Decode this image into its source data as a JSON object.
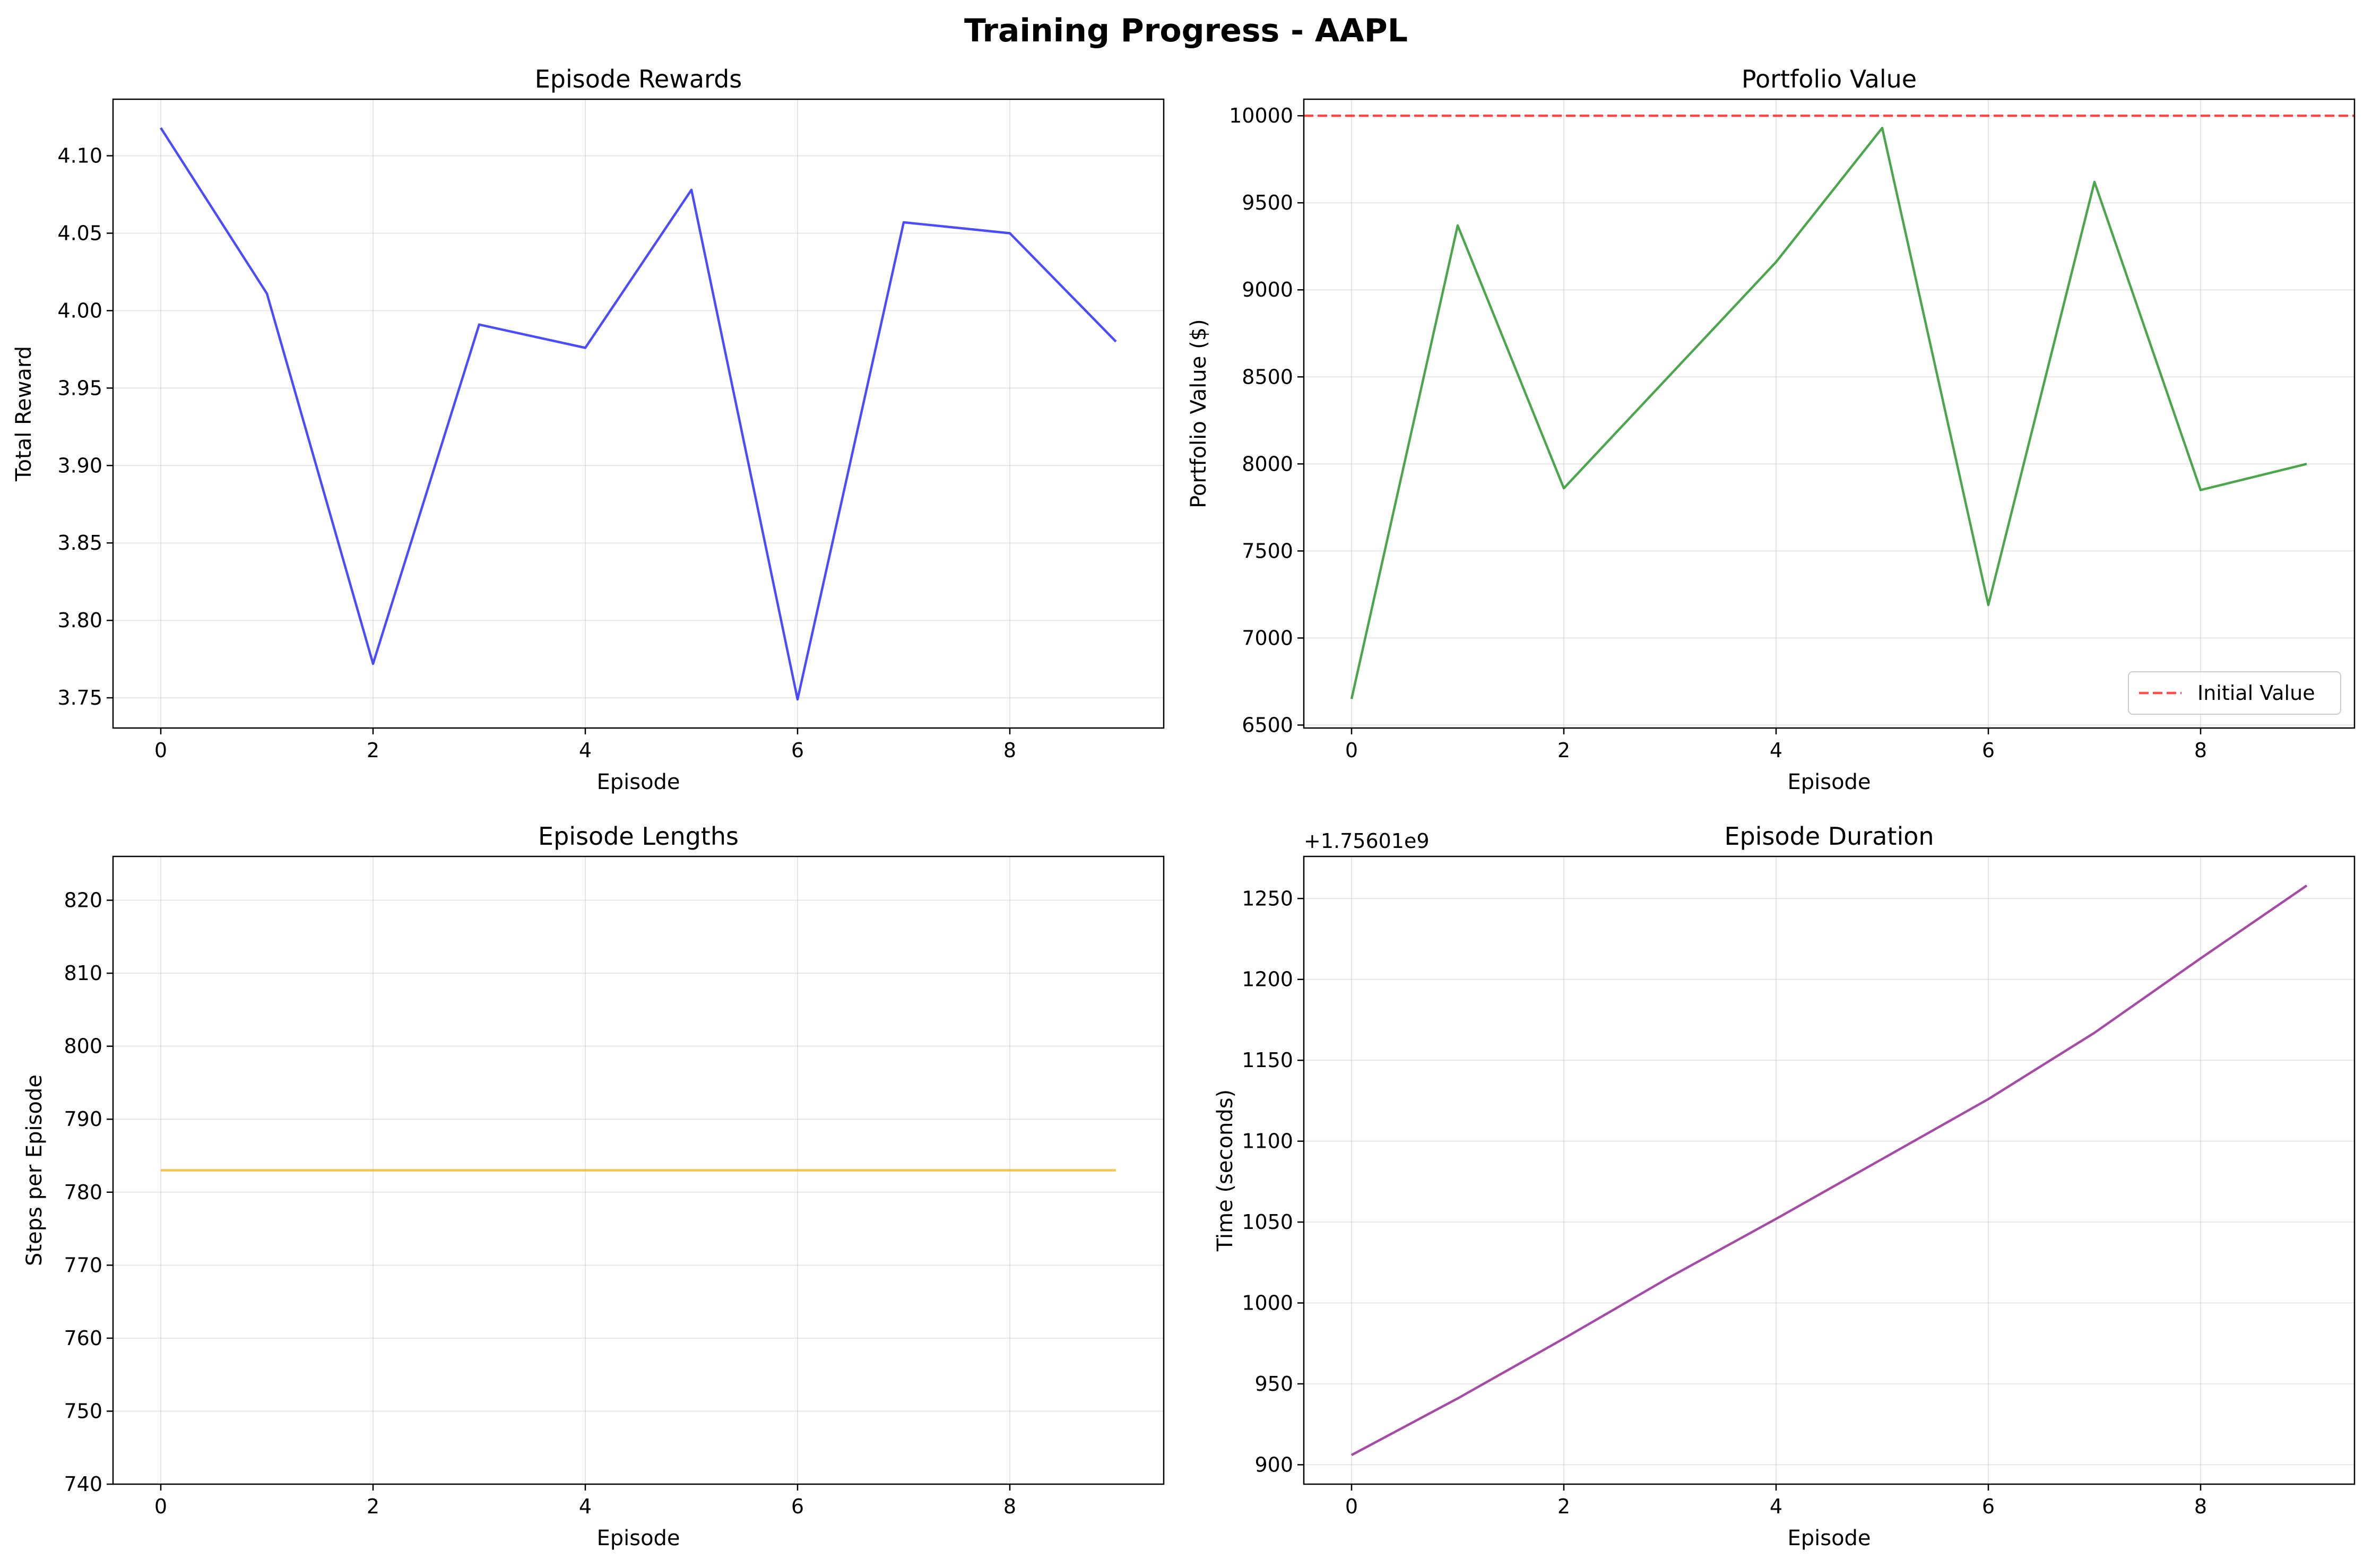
{
  "figure": {
    "title": "Training Progress - AAPL",
    "background": "#ffffff"
  },
  "chart_data": [
    {
      "id": "rewards",
      "type": "line",
      "title": "Episode Rewards",
      "xlabel": "Episode",
      "ylabel": "Total Reward",
      "xlim": [
        -0.45,
        9.45
      ],
      "ylim": [
        3.7305,
        4.1365
      ],
      "xticks": [
        0,
        2,
        4,
        6,
        8
      ],
      "xtick_labels": [
        "0",
        "2",
        "4",
        "6",
        "8"
      ],
      "yticks": [
        3.75,
        3.8,
        3.85,
        3.9,
        3.95,
        4.0,
        4.05,
        4.1
      ],
      "ytick_labels": [
        "3.75",
        "3.80",
        "3.85",
        "3.90",
        "3.95",
        "4.00",
        "4.05",
        "4.10"
      ],
      "grid": true,
      "series": [
        {
          "color": "#0000ff",
          "x": [
            0,
            1,
            2,
            3,
            4,
            5,
            6,
            7,
            8,
            9
          ],
          "values": [
            4.118,
            4.011,
            3.772,
            3.991,
            3.976,
            4.078,
            3.749,
            4.057,
            4.05,
            3.98
          ]
        }
      ]
    },
    {
      "id": "portfolio",
      "type": "line",
      "title": "Portfolio Value",
      "xlabel": "Episode",
      "ylabel": "Portfolio Value ($)",
      "xlim": [
        -0.45,
        9.45
      ],
      "ylim": [
        6483,
        10095
      ],
      "xticks": [
        0,
        2,
        4,
        6,
        8
      ],
      "xtick_labels": [
        "0",
        "2",
        "4",
        "6",
        "8"
      ],
      "yticks": [
        6500,
        7000,
        7500,
        8000,
        8500,
        9000,
        9500,
        10000
      ],
      "ytick_labels": [
        "6500",
        "7000",
        "7500",
        "8000",
        "8500",
        "9000",
        "9500",
        "10000"
      ],
      "grid": true,
      "legend_position": "lower-right",
      "reference_line": {
        "y": 10000,
        "label": "Initial Value",
        "color": "#ff0000",
        "dashed": true
      },
      "series": [
        {
          "color": "#008000",
          "x": [
            0,
            1,
            2,
            3,
            4,
            5,
            6,
            7,
            8,
            9
          ],
          "values": [
            6650,
            9370,
            7860,
            8510,
            9160,
            9930,
            7190,
            9620,
            7850,
            8000
          ]
        }
      ]
    },
    {
      "id": "lengths",
      "type": "line",
      "title": "Episode Lengths",
      "xlabel": "Episode",
      "ylabel": "Steps per Episode",
      "xlim": [
        -0.45,
        9.45
      ],
      "ylim": [
        740,
        826
      ],
      "xticks": [
        0,
        2,
        4,
        6,
        8
      ],
      "xtick_labels": [
        "0",
        "2",
        "4",
        "6",
        "8"
      ],
      "yticks": [
        740,
        750,
        760,
        770,
        780,
        790,
        800,
        810,
        820
      ],
      "ytick_labels": [
        "740",
        "750",
        "760",
        "770",
        "780",
        "790",
        "800",
        "810",
        "820"
      ],
      "grid": true,
      "series": [
        {
          "color": "#ffa500",
          "x": [
            0,
            1,
            2,
            3,
            4,
            5,
            6,
            7,
            8,
            9
          ],
          "values": [
            783,
            783,
            783,
            783,
            783,
            783,
            783,
            783,
            783,
            783
          ]
        }
      ]
    },
    {
      "id": "duration",
      "type": "line",
      "title": "Episode Duration",
      "xlabel": "Episode",
      "ylabel": "Time (seconds)",
      "offset_label": "+1.75601e9",
      "xlim": [
        -0.45,
        9.45
      ],
      "ylim": [
        888,
        1276
      ],
      "xticks": [
        0,
        2,
        4,
        6,
        8
      ],
      "xtick_labels": [
        "0",
        "2",
        "4",
        "6",
        "8"
      ],
      "yticks": [
        900,
        950,
        1000,
        1050,
        1100,
        1150,
        1200,
        1250
      ],
      "ytick_labels": [
        "900",
        "950",
        "1000",
        "1050",
        "1100",
        "1150",
        "1200",
        "1250"
      ],
      "grid": true,
      "series": [
        {
          "color": "#800080",
          "x": [
            0,
            1,
            2,
            3,
            4,
            5,
            6,
            7,
            8,
            9
          ],
          "values": [
            906,
            941,
            978,
            1016,
            1052,
            1089,
            1126,
            1167,
            1213,
            1258
          ]
        }
      ]
    }
  ]
}
